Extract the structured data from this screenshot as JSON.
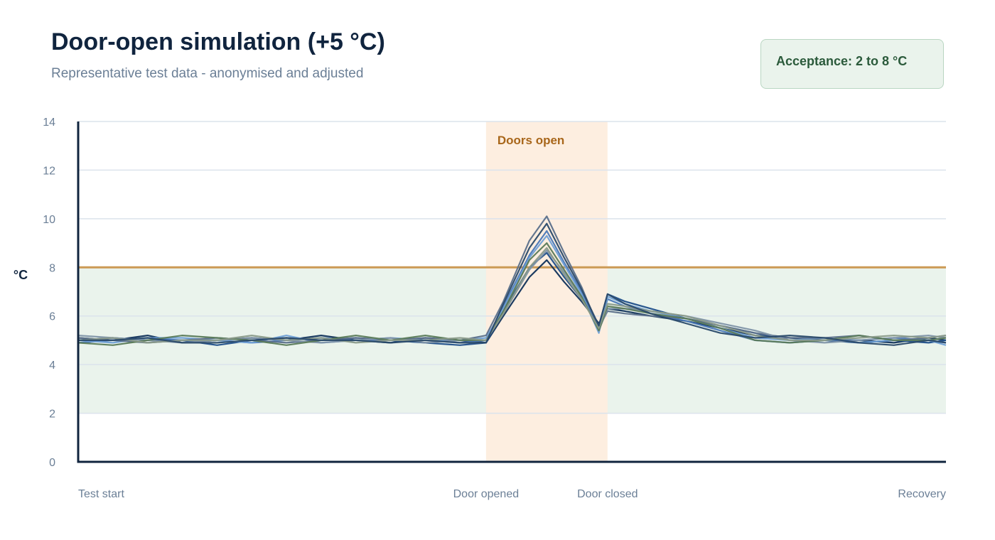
{
  "title": "Door-open simulation (+5 °C)",
  "subtitle": "Representative test data - anonymised and adjusted",
  "badge": "Acceptance: 2 to 8 °C",
  "colors": {
    "accent": "#cc9a55",
    "acceptance_fill": "#eaf3ec",
    "door_fill": "#fdeee0",
    "grid": "#dbe3ec",
    "axis": "#10243e",
    "series": [
      "#10305a",
      "#1f4e8a",
      "#4a78b8",
      "#6f9fd6",
      "#5b6f8a",
      "#7f93a8",
      "#5a7a58",
      "#8a9a8a",
      "#2a4a6a"
    ]
  },
  "chart_data": {
    "type": "line",
    "title": "Door-open simulation (+5 °C)",
    "subtitle": "Representative test data - anonymised and adjusted",
    "xlabel": "",
    "ylabel": "°C",
    "ylim": [
      0,
      14
    ],
    "yticks": [
      0,
      2,
      4,
      6,
      8,
      10,
      12,
      14
    ],
    "xlim": [
      0,
      100
    ],
    "x_tick_labels": [
      {
        "x": 0,
        "label": "Test start"
      },
      {
        "x": 47,
        "label": "Door opened"
      },
      {
        "x": 61,
        "label": "Door closed"
      },
      {
        "x": 100,
        "label": "Recovery"
      }
    ],
    "acceptance_band": {
      "low": 2,
      "high": 8,
      "label": "Acceptance: 2 to 8 °C"
    },
    "threshold_line": 8,
    "door_open_band": {
      "start": 47,
      "end": 61,
      "label": "Doors open"
    },
    "grid": true,
    "legend": "none",
    "x": [
      0,
      4,
      8,
      12,
      16,
      20,
      24,
      28,
      32,
      36,
      40,
      44,
      47,
      49,
      52,
      54,
      56,
      58,
      60,
      61,
      63,
      66,
      70,
      74,
      78,
      82,
      86,
      90,
      94,
      98,
      100
    ],
    "series": [
      {
        "values": [
          5.1,
          5.0,
          5.2,
          4.9,
          5.0,
          5.1,
          5.0,
          5.2,
          5.0,
          4.9,
          5.1,
          5.0,
          4.9,
          6.0,
          7.6,
          8.3,
          7.4,
          6.6,
          5.7,
          6.3,
          6.2,
          6.0,
          5.8,
          5.5,
          5.2,
          5.1,
          5.0,
          5.0,
          4.9,
          5.1,
          5.0
        ]
      },
      {
        "values": [
          5.0,
          5.1,
          5.0,
          5.0,
          4.8,
          5.0,
          5.1,
          5.0,
          5.1,
          5.0,
          4.9,
          4.8,
          4.9,
          6.2,
          8.0,
          8.6,
          7.6,
          6.7,
          5.6,
          6.9,
          6.6,
          6.3,
          5.9,
          5.6,
          5.3,
          5.0,
          5.0,
          4.9,
          5.0,
          4.9,
          5.0
        ]
      },
      {
        "values": [
          4.9,
          5.0,
          5.1,
          5.0,
          5.0,
          4.9,
          5.0,
          5.1,
          5.0,
          5.0,
          5.0,
          4.9,
          5.0,
          6.4,
          8.5,
          9.5,
          8.2,
          7.0,
          5.4,
          6.7,
          6.4,
          6.1,
          5.8,
          5.4,
          5.0,
          4.9,
          5.0,
          5.0,
          5.1,
          5.0,
          4.9
        ]
      },
      {
        "values": [
          5.0,
          4.9,
          5.1,
          5.1,
          5.0,
          4.9,
          5.2,
          4.9,
          5.0,
          5.1,
          5.0,
          5.0,
          5.1,
          6.3,
          8.4,
          9.3,
          8.1,
          6.9,
          5.3,
          6.8,
          6.5,
          6.2,
          5.9,
          5.5,
          5.1,
          5.0,
          5.1,
          4.9,
          5.0,
          5.0,
          4.8
        ]
      },
      {
        "values": [
          5.1,
          5.0,
          4.9,
          5.0,
          5.1,
          5.0,
          4.9,
          5.0,
          5.1,
          5.0,
          5.1,
          5.0,
          5.2,
          6.6,
          9.1,
          10.1,
          8.6,
          7.2,
          5.5,
          6.2,
          6.1,
          6.0,
          5.9,
          5.6,
          5.3,
          5.1,
          5.1,
          5.2,
          5.0,
          5.1,
          5.2
        ]
      },
      {
        "values": [
          5.2,
          5.1,
          5.0,
          4.9,
          5.0,
          5.1,
          5.0,
          4.9,
          5.0,
          5.1,
          4.9,
          5.0,
          5.0,
          6.1,
          7.9,
          8.7,
          7.8,
          6.8,
          5.4,
          6.3,
          6.3,
          6.2,
          6.0,
          5.7,
          5.4,
          5.0,
          4.9,
          5.0,
          5.1,
          5.2,
          5.1
        ]
      },
      {
        "values": [
          4.9,
          4.8,
          5.0,
          5.2,
          5.1,
          5.0,
          4.8,
          5.0,
          5.2,
          5.0,
          5.2,
          5.0,
          5.0,
          6.2,
          8.3,
          9.0,
          7.9,
          6.8,
          5.4,
          6.4,
          6.3,
          6.1,
          5.9,
          5.5,
          5.0,
          4.9,
          5.0,
          5.2,
          5.0,
          5.0,
          5.1
        ]
      },
      {
        "values": [
          5.0,
          5.1,
          4.9,
          5.0,
          5.0,
          5.2,
          5.0,
          5.1,
          4.9,
          5.0,
          5.0,
          5.1,
          5.0,
          6.1,
          8.0,
          8.8,
          7.7,
          6.7,
          5.5,
          6.5,
          6.4,
          6.2,
          6.0,
          5.6,
          5.2,
          5.0,
          5.0,
          5.1,
          5.2,
          5.1,
          5.2
        ]
      },
      {
        "values": [
          5.0,
          5.0,
          5.1,
          4.9,
          4.9,
          5.0,
          5.1,
          5.0,
          5.0,
          4.9,
          5.0,
          4.9,
          4.9,
          6.5,
          8.8,
          9.8,
          8.4,
          7.1,
          5.6,
          6.9,
          6.5,
          6.1,
          5.7,
          5.3,
          5.1,
          5.2,
          5.1,
          4.9,
          4.8,
          5.0,
          4.9
        ]
      }
    ]
  }
}
